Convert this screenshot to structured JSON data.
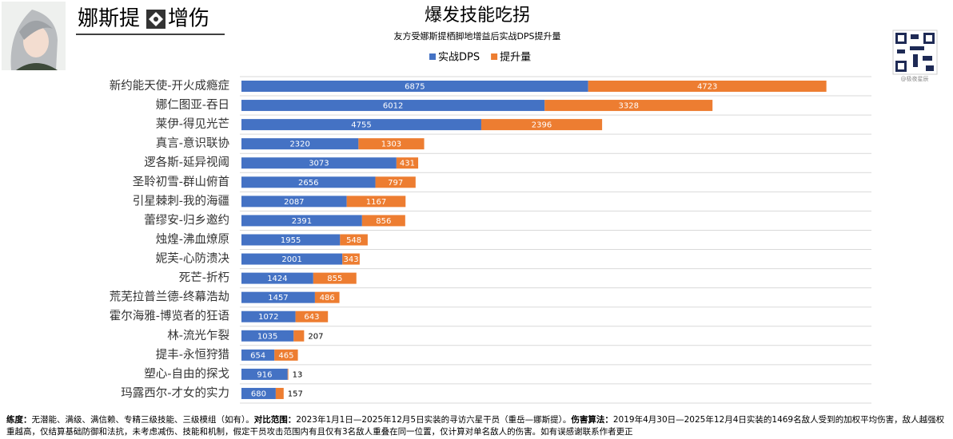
{
  "header": {
    "name": "娜斯提",
    "tag": "增伤"
  },
  "watermark": "@极夜星辰",
  "notes": [
    {
      "label": "练度：",
      "text": "无潜能、满级、满信赖、专精三级技能、三级模组（如有）。"
    },
    {
      "label": "对比范围：",
      "text": "2023年1月1日—2025年12月5日实装的寻访六星干员（重岳—娜斯提）。"
    },
    {
      "label": "伤害算法：",
      "text": "2019年4月30日—2025年12月4日实装的1469名敌人受到的加权平均伤害，敌人越强权重越高，仅结算基础防御和法抗，未考虑减伤、技能和机制，假定干员攻击范围内有且仅有3名敌人重叠在同一位置，仅计算对单名敌人的伤害。如有误感谢联系作者更正"
    }
  ],
  "chart_data": {
    "type": "stacked_barh",
    "title": "爆发技能吃拐",
    "subtitle": "友方受娜斯提栖脚地增益后实战DPS提升量",
    "categories": [
      "新约能天使-开火成瘾症",
      "娜仁图亚-吞日",
      "莱伊-得见光芒",
      "真言-意识联协",
      "逻各斯-延异视阈",
      "圣聆初雪-群山俯首",
      "引星棘刺-我的海疆",
      "蕾缪安-归乡邀约",
      "烛煌-沸血燎原",
      "妮芙-心防溃决",
      "死芒-折朽",
      "荒芜拉普兰德-终幕浩劫",
      "霍尔海雅-博览者的狂语",
      "林-流光乍裂",
      "提丰-永恒狩猎",
      "塑心-自由的探戈",
      "玛露西尔-才女的实力"
    ],
    "series": [
      {
        "name": "实战DPS",
        "color": "#4472c4",
        "values": [
          6875,
          6012,
          4755,
          2320,
          3073,
          2656,
          2087,
          2391,
          1955,
          2001,
          1424,
          1457,
          1072,
          1035,
          654,
          916,
          680
        ]
      },
      {
        "name": "提升量",
        "color": "#ed7d31",
        "values": [
          4723,
          3328,
          2396,
          1303,
          431,
          797,
          1167,
          856,
          548,
          343,
          855,
          486,
          643,
          207,
          465,
          13,
          157
        ]
      }
    ],
    "xlim": [
      0,
      12000
    ],
    "legend": "top"
  }
}
